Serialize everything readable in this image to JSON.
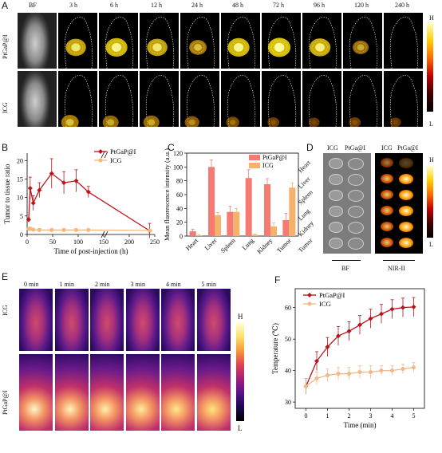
{
  "panels": {
    "a": {
      "letter": "A",
      "bf_label": "BF",
      "timepoints": [
        "3 h",
        "6 h",
        "12 h",
        "24 h",
        "48 h",
        "72 h",
        "96 h",
        "120 h",
        "240 h"
      ],
      "row_labels": [
        "PtGaP@I",
        "ICG"
      ],
      "scale_high": "H",
      "scale_low": "L",
      "ptgapi_intensity": [
        0.75,
        0.85,
        0.75,
        0.55,
        0.85,
        0.9,
        0.8,
        0.45,
        0.0
      ],
      "icg_intensity": [
        0.55,
        0.45,
        0.45,
        0.35,
        0.25,
        0.15,
        0.1,
        0.15,
        0.1
      ]
    },
    "b": {
      "letter": "B"
    },
    "c": {
      "letter": "C"
    },
    "d": {
      "letter": "D",
      "col_labels": [
        "ICG",
        "PtGa@I"
      ],
      "col_labels_nir": [
        "ICG",
        "PtGa@I"
      ],
      "organs": [
        "Heart",
        "Liver",
        "Spleen",
        "Lung",
        "Kidney",
        "Tumor"
      ],
      "bf_label": "BF",
      "nir_label": "NIR-II",
      "scale_high": "H",
      "scale_low": "L"
    },
    "e": {
      "letter": "E",
      "timepoints": [
        "0 min",
        "1 min",
        "2 min",
        "3 min",
        "4 min",
        "5 min"
      ],
      "row_labels": [
        "ICG",
        "PtGaP@I"
      ],
      "scale_high": "H",
      "scale_low": "L"
    },
    "f": {
      "letter": "F"
    }
  },
  "chart_data": [
    {
      "id": "B",
      "type": "line",
      "xlabel": "Time of post-injection (h)",
      "ylabel": "Tumor to tissue ratio",
      "xticks": [
        "0",
        "50",
        "100",
        "150",
        "200",
        "250"
      ],
      "yticks": [
        "0",
        "5",
        "10",
        "15",
        "20"
      ],
      "ylim": [
        0,
        22
      ],
      "axis_break": true,
      "legend_position": "top-right",
      "series": [
        {
          "name": "PtGaP@I",
          "color": "#c0141c",
          "x": [
            3,
            6,
            12,
            24,
            48,
            72,
            96,
            120,
            240
          ],
          "y": [
            4,
            12.5,
            8.5,
            12,
            16.5,
            14,
            14.5,
            11.5,
            1
          ],
          "err": [
            0.5,
            3,
            2,
            2,
            4,
            3,
            3,
            1.5,
            2
          ]
        },
        {
          "name": "ICG",
          "color": "#f5b87a",
          "x": [
            3,
            6,
            12,
            24,
            48,
            72,
            96,
            120,
            240
          ],
          "y": [
            1.5,
            1.5,
            1.3,
            1.2,
            1.2,
            1.2,
            1.2,
            1.2,
            1.1
          ],
          "err": [
            0.5,
            0.5,
            0.4,
            0.4,
            0.4,
            0.4,
            0.4,
            0.4,
            0.3
          ]
        }
      ]
    },
    {
      "id": "C",
      "type": "bar",
      "ylabel": "Mean fluorescence intensity (a.u.)",
      "categories": [
        "Heart",
        "Liver",
        "Spleen",
        "Lung",
        "Kidney",
        "Tumor"
      ],
      "yticks": [
        "0",
        "20",
        "40",
        "60",
        "80",
        "100",
        "120"
      ],
      "ylim": [
        0,
        120
      ],
      "legend_position": "top-right",
      "series": [
        {
          "name": "PtGaP@I",
          "color": "#f47a72",
          "values": [
            7,
            100,
            35,
            84,
            75,
            23
          ],
          "err": [
            3,
            10,
            8,
            12,
            8,
            10
          ]
        },
        {
          "name": "ICG",
          "color": "#f5b26b",
          "values": [
            1,
            30,
            35,
            2,
            14,
            70
          ],
          "err": [
            1,
            4,
            5,
            1,
            5,
            7
          ]
        }
      ]
    },
    {
      "id": "F",
      "type": "line",
      "xlabel": "Time (min)",
      "ylabel": "Temperature (℃)",
      "xticks": [
        "0",
        "1",
        "2",
        "3",
        "4",
        "5"
      ],
      "yticks": [
        "30",
        "40",
        "50",
        "60"
      ],
      "ylim": [
        28,
        66
      ],
      "legend_position": "top-left",
      "series": [
        {
          "name": "PtGaP@I",
          "color": "#b8121a",
          "x": [
            0,
            0.5,
            1,
            1.5,
            2,
            2.5,
            3,
            3.5,
            4,
            4.5,
            5
          ],
          "y": [
            35,
            43,
            47.5,
            51,
            52.5,
            54.5,
            56.5,
            58,
            59.5,
            60,
            60.2
          ],
          "err": [
            2.5,
            3,
            3,
            3,
            3,
            3,
            3,
            3,
            3,
            3,
            3
          ]
        },
        {
          "name": "ICG",
          "color": "#f2b88a",
          "x": [
            0,
            0.5,
            1,
            1.5,
            2,
            2.5,
            3,
            3.5,
            4,
            4.5,
            5
          ],
          "y": [
            35,
            37.5,
            38.5,
            39,
            39,
            39.5,
            39.5,
            40,
            40,
            40.5,
            41
          ],
          "err": [
            2.5,
            2,
            2,
            2,
            2,
            2,
            2,
            1.5,
            1.5,
            1.5,
            1.5
          ]
        }
      ]
    }
  ]
}
